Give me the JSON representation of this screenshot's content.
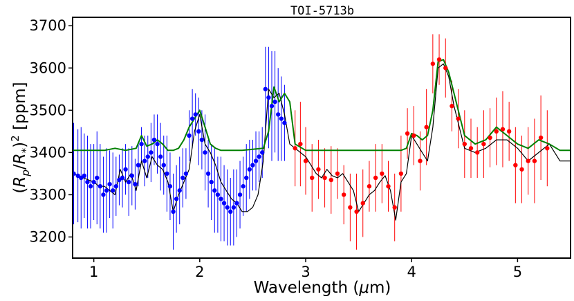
{
  "chart_data": {
    "type": "line",
    "title": "TOI-5713b",
    "xlabel": "Wavelength (μm)",
    "ylabel": "(Rp/R*)² [ppm]",
    "xlim": [
      0.8,
      5.5
    ],
    "ylim": [
      3150,
      3720
    ],
    "xticks": [
      1,
      2,
      3,
      4,
      5
    ],
    "yticks": [
      3200,
      3300,
      3400,
      3500,
      3600,
      3700
    ],
    "grid": false,
    "colors": {
      "model_clear": "#000000",
      "model_cloudy": "#008000",
      "obs_blue": "#0000ff",
      "obs_red": "#ff0000"
    },
    "series": [
      {
        "name": "model-black",
        "kind": "line",
        "x": [
          0.8,
          0.9,
          1.0,
          1.05,
          1.1,
          1.15,
          1.2,
          1.25,
          1.3,
          1.35,
          1.4,
          1.45,
          1.5,
          1.55,
          1.6,
          1.65,
          1.7,
          1.75,
          1.8,
          1.85,
          1.9,
          1.95,
          2.0,
          2.05,
          2.1,
          2.15,
          2.2,
          2.25,
          2.3,
          2.35,
          2.4,
          2.45,
          2.5,
          2.55,
          2.6,
          2.65,
          2.7,
          2.75,
          2.8,
          2.85,
          2.9,
          2.95,
          3.0,
          3.05,
          3.1,
          3.15,
          3.2,
          3.25,
          3.3,
          3.35,
          3.4,
          3.45,
          3.5,
          3.55,
          3.6,
          3.65,
          3.7,
          3.75,
          3.8,
          3.85,
          3.9,
          3.95,
          4.0,
          4.05,
          4.1,
          4.15,
          4.2,
          4.25,
          4.3,
          4.35,
          4.4,
          4.45,
          4.5,
          4.6,
          4.7,
          4.8,
          4.9,
          5.0,
          5.1,
          5.2,
          5.3,
          5.4,
          5.5
        ],
        "y": [
          3350,
          3340,
          3330,
          3320,
          3320,
          3310,
          3300,
          3360,
          3330,
          3350,
          3310,
          3380,
          3340,
          3390,
          3370,
          3360,
          3330,
          3260,
          3300,
          3330,
          3360,
          3450,
          3490,
          3420,
          3400,
          3370,
          3330,
          3310,
          3290,
          3280,
          3260,
          3260,
          3270,
          3300,
          3380,
          3550,
          3530,
          3540,
          3490,
          3420,
          3410,
          3400,
          3390,
          3370,
          3350,
          3340,
          3360,
          3345,
          3340,
          3350,
          3330,
          3310,
          3260,
          3280,
          3300,
          3310,
          3330,
          3345,
          3310,
          3240,
          3330,
          3350,
          3440,
          3420,
          3400,
          3380,
          3460,
          3600,
          3610,
          3580,
          3510,
          3460,
          3410,
          3400,
          3410,
          3430,
          3430,
          3410,
          3380,
          3400,
          3420,
          3380,
          3380
        ]
      },
      {
        "name": "model-green",
        "kind": "line",
        "x": [
          0.8,
          1.0,
          1.1,
          1.2,
          1.3,
          1.4,
          1.45,
          1.5,
          1.55,
          1.6,
          1.65,
          1.7,
          1.75,
          1.8,
          1.85,
          1.9,
          1.95,
          2.0,
          2.05,
          2.1,
          2.15,
          2.2,
          2.4,
          2.6,
          2.65,
          2.7,
          2.75,
          2.8,
          2.85,
          2.9,
          3.0,
          3.5,
          3.9,
          3.95,
          4.0,
          4.05,
          4.1,
          4.15,
          4.2,
          4.25,
          4.3,
          4.35,
          4.4,
          4.45,
          4.5,
          4.6,
          4.7,
          4.8,
          4.9,
          5.0,
          5.1,
          5.2,
          5.3,
          5.4,
          5.5
        ],
        "y": [
          3405,
          3405,
          3405,
          3410,
          3405,
          3410,
          3440,
          3415,
          3420,
          3430,
          3420,
          3405,
          3405,
          3410,
          3430,
          3460,
          3480,
          3500,
          3460,
          3420,
          3410,
          3405,
          3405,
          3410,
          3450,
          3555,
          3520,
          3540,
          3520,
          3420,
          3405,
          3405,
          3405,
          3410,
          3445,
          3440,
          3430,
          3440,
          3500,
          3615,
          3620,
          3590,
          3540,
          3490,
          3440,
          3420,
          3430,
          3460,
          3440,
          3420,
          3410,
          3430,
          3420,
          3405,
          3405
        ]
      },
      {
        "name": "observations-blue",
        "kind": "errorbar",
        "x": [
          0.81,
          0.85,
          0.88,
          0.91,
          0.94,
          0.97,
          1.0,
          1.03,
          1.06,
          1.09,
          1.12,
          1.15,
          1.18,
          1.21,
          1.24,
          1.27,
          1.3,
          1.33,
          1.36,
          1.39,
          1.42,
          1.45,
          1.48,
          1.51,
          1.54,
          1.57,
          1.6,
          1.63,
          1.66,
          1.69,
          1.72,
          1.75,
          1.78,
          1.81,
          1.84,
          1.87,
          1.9,
          1.93,
          1.96,
          1.99,
          2.02,
          2.05,
          2.08,
          2.11,
          2.14,
          2.17,
          2.2,
          2.23,
          2.26,
          2.29,
          2.32,
          2.35,
          2.38,
          2.41,
          2.44,
          2.47,
          2.5,
          2.53,
          2.56,
          2.59,
          2.62,
          2.65,
          2.68,
          2.71,
          2.74,
          2.77,
          2.8
        ],
        "y": [
          3350,
          3345,
          3340,
          3345,
          3330,
          3320,
          3330,
          3340,
          3320,
          3300,
          3310,
          3325,
          3310,
          3320,
          3335,
          3340,
          3360,
          3330,
          3345,
          3325,
          3370,
          3420,
          3380,
          3390,
          3400,
          3430,
          3420,
          3390,
          3370,
          3350,
          3320,
          3260,
          3290,
          3310,
          3340,
          3350,
          3440,
          3480,
          3490,
          3450,
          3430,
          3400,
          3350,
          3330,
          3310,
          3300,
          3290,
          3280,
          3270,
          3260,
          3270,
          3280,
          3300,
          3320,
          3340,
          3360,
          3370,
          3380,
          3390,
          3400,
          3550,
          3530,
          3510,
          3520,
          3490,
          3480,
          3470
        ],
        "err": [
          120,
          110,
          120,
          100,
          110,
          100,
          90,
          110,
          100,
          90,
          100,
          80,
          90,
          70,
          60,
          70,
          60,
          80,
          70,
          60,
          50,
          40,
          60,
          50,
          70,
          60,
          70,
          80,
          70,
          90,
          80,
          90,
          80,
          80,
          70,
          60,
          60,
          70,
          50,
          80,
          70,
          90,
          80,
          90,
          100,
          90,
          100,
          90,
          90,
          80,
          90,
          80,
          80,
          70,
          80,
          70,
          60,
          70,
          60,
          60,
          100,
          120,
          130,
          120,
          110,
          100,
          90
        ]
      },
      {
        "name": "observations-red",
        "kind": "errorbar",
        "x": [
          2.9,
          2.95,
          3.0,
          3.06,
          3.12,
          3.18,
          3.24,
          3.3,
          3.36,
          3.42,
          3.48,
          3.54,
          3.6,
          3.66,
          3.72,
          3.78,
          3.84,
          3.9,
          3.96,
          4.02,
          4.08,
          4.14,
          4.2,
          4.26,
          4.32,
          4.38,
          4.44,
          4.5,
          4.56,
          4.62,
          4.68,
          4.74,
          4.8,
          4.86,
          4.92,
          4.98,
          5.04,
          5.1,
          5.16,
          5.22,
          5.28
        ],
        "y": [
          3410,
          3420,
          3380,
          3340,
          3360,
          3340,
          3335,
          3350,
          3300,
          3270,
          3260,
          3280,
          3320,
          3340,
          3350,
          3320,
          3270,
          3350,
          3445,
          3440,
          3380,
          3460,
          3610,
          3620,
          3600,
          3510,
          3480,
          3420,
          3410,
          3400,
          3420,
          3435,
          3450,
          3455,
          3450,
          3370,
          3360,
          3380,
          3380,
          3435,
          3410
        ],
        "err": [
          90,
          100,
          80,
          80,
          70,
          70,
          80,
          60,
          70,
          80,
          90,
          80,
          60,
          80,
          70,
          60,
          80,
          90,
          60,
          70,
          70,
          90,
          70,
          60,
          70,
          60,
          70,
          80,
          70,
          60,
          80,
          70,
          80,
          90,
          70,
          90,
          80,
          80,
          100,
          100,
          90
        ]
      }
    ]
  }
}
